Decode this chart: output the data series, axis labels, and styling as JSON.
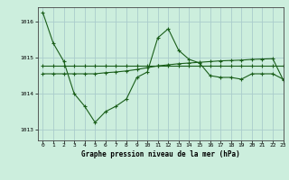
{
  "bg_color": "#cceedd",
  "grid_color": "#aacccc",
  "line_color": "#1a5e1a",
  "title": "Graphe pression niveau de la mer (hPa)",
  "xlim": [
    -0.5,
    23
  ],
  "ylim": [
    1012.7,
    1016.4
  ],
  "yticks": [
    1013,
    1014,
    1015,
    1016
  ],
  "xticks": [
    0,
    1,
    2,
    3,
    4,
    5,
    6,
    7,
    8,
    9,
    10,
    11,
    12,
    13,
    14,
    15,
    16,
    17,
    18,
    19,
    20,
    21,
    22,
    23
  ],
  "series1_x": [
    0,
    1,
    2,
    3,
    4,
    5,
    6,
    7,
    8,
    9,
    10,
    11,
    12,
    13,
    14,
    15,
    16,
    17,
    18,
    19,
    20,
    21,
    22,
    23
  ],
  "series1_y": [
    1016.25,
    1015.4,
    1014.9,
    1014.0,
    1013.65,
    1013.2,
    1013.5,
    1013.65,
    1013.85,
    1014.45,
    1014.6,
    1015.55,
    1015.8,
    1015.2,
    1014.95,
    1014.85,
    1014.5,
    1014.45,
    1014.45,
    1014.4,
    1014.55,
    1014.55,
    1014.55,
    1014.4
  ],
  "series2_x": [
    0,
    1,
    2,
    3,
    4,
    5,
    6,
    7,
    8,
    9,
    10,
    11,
    12,
    13,
    14,
    15,
    16,
    17,
    18,
    19,
    20,
    21,
    22,
    23
  ],
  "series2_y": [
    1014.78,
    1014.78,
    1014.78,
    1014.78,
    1014.78,
    1014.78,
    1014.78,
    1014.78,
    1014.78,
    1014.78,
    1014.78,
    1014.78,
    1014.78,
    1014.78,
    1014.78,
    1014.78,
    1014.78,
    1014.78,
    1014.78,
    1014.78,
    1014.78,
    1014.78,
    1014.78,
    1014.78
  ],
  "series3_x": [
    0,
    1,
    2,
    3,
    4,
    5,
    6,
    7,
    8,
    9,
    10,
    11,
    12,
    13,
    14,
    15,
    16,
    17,
    18,
    19,
    20,
    21,
    22,
    23
  ],
  "series3_y": [
    1014.55,
    1014.55,
    1014.55,
    1014.55,
    1014.55,
    1014.55,
    1014.58,
    1014.6,
    1014.63,
    1014.67,
    1014.72,
    1014.77,
    1014.8,
    1014.83,
    1014.85,
    1014.87,
    1014.89,
    1014.91,
    1014.92,
    1014.93,
    1014.95,
    1014.96,
    1014.97,
    1014.38
  ]
}
